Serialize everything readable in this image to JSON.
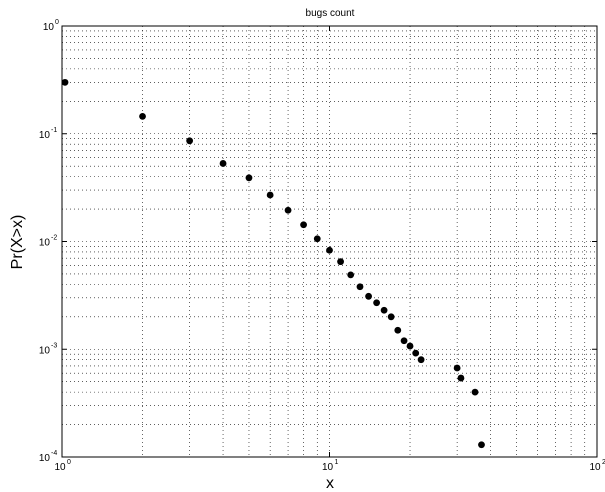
{
  "chart_data": {
    "type": "scatter",
    "title": "bugs count",
    "xlabel": "x",
    "ylabel": "Pr(X>x)",
    "xscale": "log",
    "yscale": "log",
    "xlim": [
      1,
      100
    ],
    "ylim": [
      0.0001,
      1
    ],
    "grid": true,
    "x_ticks": [
      {
        "base": "10",
        "exp": "0",
        "value": 1
      },
      {
        "base": "10",
        "exp": "1",
        "value": 10
      },
      {
        "base": "10",
        "exp": "2",
        "value": 100
      }
    ],
    "y_ticks": [
      {
        "base": "10",
        "exp": "-4",
        "value": 0.0001
      },
      {
        "base": "10",
        "exp": "-3",
        "value": 0.001
      },
      {
        "base": "10",
        "exp": "-2",
        "value": 0.01
      },
      {
        "base": "10",
        "exp": "-1",
        "value": 0.1
      },
      {
        "base": "10",
        "exp": "0",
        "value": 1
      }
    ],
    "points": [
      {
        "x": 1,
        "y": 0.3
      },
      {
        "x": 2,
        "y": 0.145
      },
      {
        "x": 3,
        "y": 0.086
      },
      {
        "x": 4,
        "y": 0.053
      },
      {
        "x": 5,
        "y": 0.039
      },
      {
        "x": 6,
        "y": 0.027
      },
      {
        "x": 7,
        "y": 0.0195
      },
      {
        "x": 8,
        "y": 0.0143
      },
      {
        "x": 9,
        "y": 0.0106
      },
      {
        "x": 10,
        "y": 0.0083
      },
      {
        "x": 11,
        "y": 0.0065
      },
      {
        "x": 12,
        "y": 0.0049
      },
      {
        "x": 13,
        "y": 0.0038
      },
      {
        "x": 14,
        "y": 0.0031
      },
      {
        "x": 15,
        "y": 0.0027
      },
      {
        "x": 16,
        "y": 0.0023
      },
      {
        "x": 17,
        "y": 0.002
      },
      {
        "x": 18,
        "y": 0.0015
      },
      {
        "x": 19,
        "y": 0.0012
      },
      {
        "x": 20,
        "y": 0.00107
      },
      {
        "x": 21,
        "y": 0.00092
      },
      {
        "x": 22,
        "y": 0.0008
      },
      {
        "x": 30,
        "y": 0.00067
      },
      {
        "x": 31,
        "y": 0.00054
      },
      {
        "x": 35,
        "y": 0.0004
      },
      {
        "x": 37,
        "y": 0.00013
      }
    ]
  }
}
